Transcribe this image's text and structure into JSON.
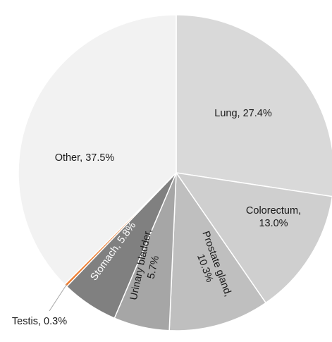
{
  "chart_data": {
    "type": "pie",
    "title": "",
    "start_angle_deg": 0,
    "direction": "clockwise",
    "slices": [
      {
        "label": "Lung",
        "value": 27.4,
        "display": "Lung, 27.4%",
        "color": "#d9d9d9"
      },
      {
        "label": "Colorectum",
        "value": 13.0,
        "display": "Colorectum, 13.0%",
        "color": "#cfcfcf"
      },
      {
        "label": "Prostate gland",
        "value": 10.3,
        "display": "Prostate gland, 10.3%",
        "color": "#bfbfbf"
      },
      {
        "label": "Urinary bladder",
        "value": 5.7,
        "display": "Urinary bladder, 5.7%",
        "color": "#a6a6a6"
      },
      {
        "label": "Stomach",
        "value": 5.8,
        "display": "Stomach, 5.8%",
        "color": "#808080"
      },
      {
        "label": "Testis",
        "value": 0.3,
        "display": "Testis, 0.3%",
        "color": "#ed7d31"
      },
      {
        "label": "Other",
        "value": 37.5,
        "display": "Other, 37.5%",
        "color": "#f2f2f2"
      }
    ]
  }
}
